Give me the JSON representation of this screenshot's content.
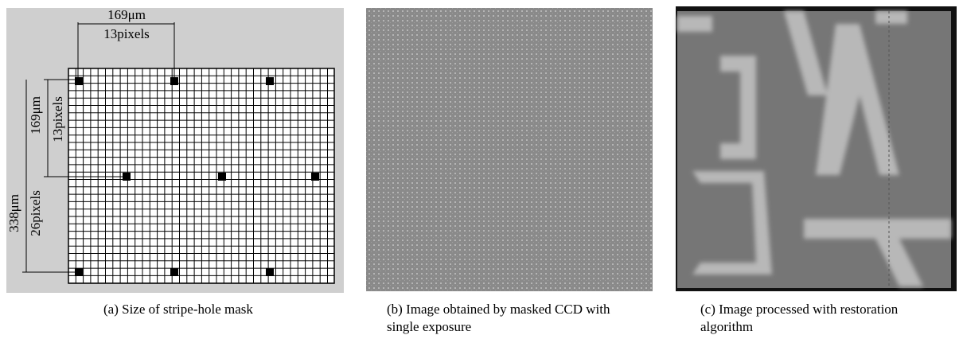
{
  "panel_a": {
    "top_dimension": {
      "length": "169μm",
      "pixels": "13pixels"
    },
    "left_inner_dimension": {
      "length": "169μm",
      "pixels": "13pixels"
    },
    "left_outer_dimension": {
      "length": "338μm",
      "pixels": "26pixels"
    },
    "caption": "(a) Size of stripe-hole mask"
  },
  "panel_b": {
    "caption": "(b) Image obtained by masked CCD with single exposure"
  },
  "panel_c": {
    "caption": "(c) Image processed with restoration algorithm"
  }
}
